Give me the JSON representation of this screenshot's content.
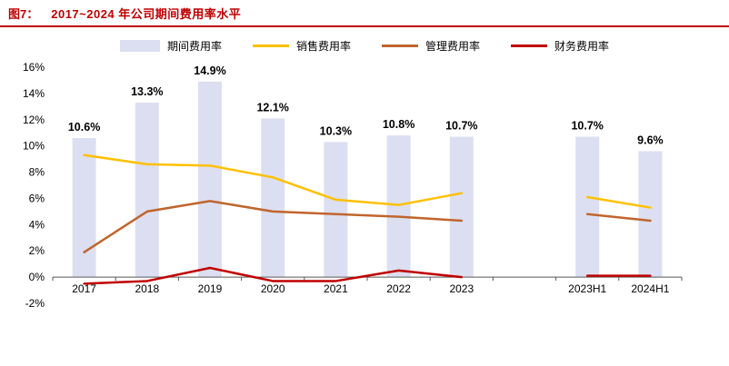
{
  "header": {
    "figure_label": "图7：",
    "title": "2017~2024 年公司期间费用率水平",
    "accent_color": "#C00000"
  },
  "chart_data": {
    "type": "bar+line",
    "title": "2017~2024 年公司期间费用率水平",
    "categories": [
      "2017",
      "2018",
      "2019",
      "2020",
      "2021",
      "2022",
      "2023",
      "2023H1",
      "2024H1"
    ],
    "series": [
      {
        "name": "期间费用率",
        "marker": "bar",
        "color": "#DCDFF1",
        "values": [
          10.6,
          13.3,
          14.9,
          12.1,
          10.3,
          10.8,
          10.7,
          10.7,
          9.6
        ],
        "labels": [
          "10.6%",
          "13.3%",
          "14.9%",
          "12.1%",
          "10.3%",
          "10.8%",
          "10.7%",
          "10.7%",
          "9.6%"
        ]
      },
      {
        "name": "销售费用率",
        "marker": "line",
        "color": "#FFC000",
        "values": [
          9.3,
          8.6,
          8.5,
          7.6,
          5.9,
          5.5,
          6.4,
          6.1,
          5.3
        ]
      },
      {
        "name": "管理费用率",
        "marker": "line",
        "color": "#C0652D",
        "values": [
          1.9,
          5.0,
          5.8,
          5.0,
          4.8,
          4.6,
          4.3,
          4.8,
          4.3
        ]
      },
      {
        "name": "财务费用率",
        "marker": "line",
        "color": "#C00000",
        "values": [
          -0.5,
          -0.3,
          0.7,
          -0.3,
          -0.3,
          0.5,
          0.0,
          0.1,
          0.1
        ]
      }
    ],
    "xlabel": "",
    "ylabel": "",
    "ylim": [
      -2,
      16
    ],
    "ytick_step": 2,
    "ytick_format": "percent",
    "gap_after_index": 6,
    "grid": false,
    "legend_position": "top"
  }
}
